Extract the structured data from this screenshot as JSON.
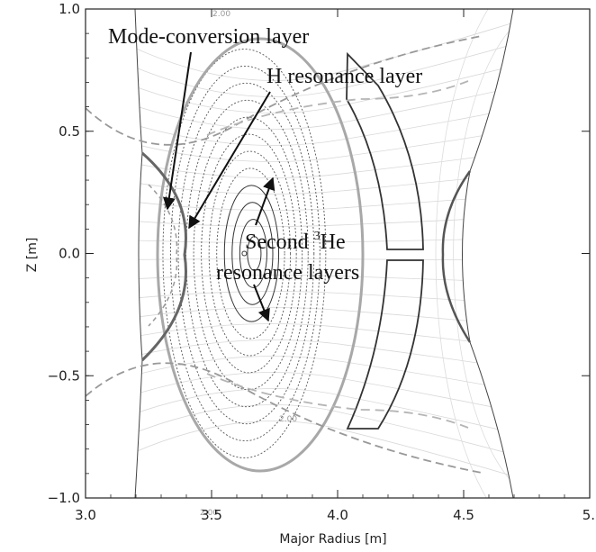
{
  "chart_data": {
    "type": "contour",
    "xlabel": "Major Radius [m]",
    "ylabel": "Z [m]",
    "xlim": [
      3.0,
      5.0
    ],
    "ylim": [
      -1.0,
      1.0
    ],
    "x_ticks": [
      {
        "value": 3.0,
        "label": "3.0"
      },
      {
        "value": 3.5,
        "label": "3.5"
      },
      {
        "value": 4.0,
        "label": "4.0"
      },
      {
        "value": 4.5,
        "label": "4.5"
      },
      {
        "value": 5.0,
        "label": "5."
      }
    ],
    "y_ticks": [
      {
        "value": 1.0,
        "label": "1.0"
      },
      {
        "value": 0.5,
        "label": "0.5"
      },
      {
        "value": 0.0,
        "label": "0.0"
      },
      {
        "value": -0.5,
        "label": "−0.5"
      },
      {
        "value": -1.0,
        "label": "−1.0"
      }
    ],
    "magnetic_axis": {
      "R": 3.63,
      "Z": 0.0
    },
    "plasma_boundary": {
      "R_center": 3.63,
      "half_width": 0.34,
      "half_height": 0.88
    },
    "flux_surface_count": 12,
    "mode_conversion_layer_R": 3.4,
    "annotations": {
      "mode_conversion": "Mode-conversion layer",
      "h_resonance": "H resonance layer",
      "he3_line1": "Second ",
      "he3_sup": "3",
      "he3_line1_end": "He",
      "he3_line2": "resonance layers"
    },
    "contour_labels": [
      "2.00",
      "2.00",
      "2.00"
    ]
  }
}
